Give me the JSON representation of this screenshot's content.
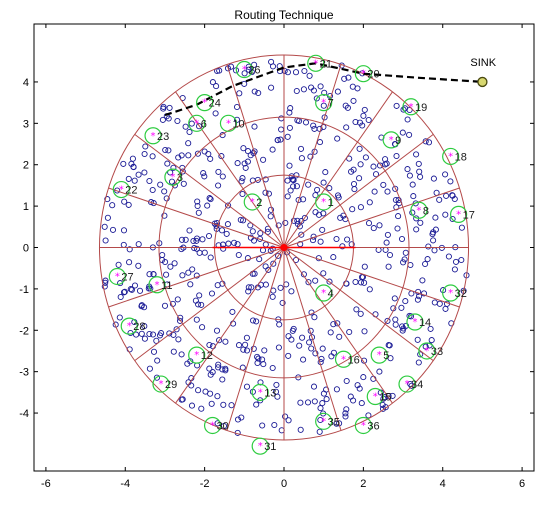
{
  "chart_data": {
    "type": "scatter",
    "title": "Routing Technique",
    "xlabel": "",
    "ylabel": "",
    "xlim": [
      -6.3,
      6.3
    ],
    "ylim": [
      -5.4,
      5.4
    ],
    "xticks": [
      "-6",
      "-4",
      "-2",
      "0",
      "2",
      "4",
      "6"
    ],
    "yticks": [
      "4",
      "3",
      "2",
      "1",
      "0",
      "-1",
      "-2",
      "-3",
      "-4"
    ],
    "grid": false,
    "rings": [
      1.75,
      3.15,
      4.65
    ],
    "sector_angles": [
      0,
      18,
      36,
      54,
      72,
      90,
      108,
      126,
      144,
      162,
      180,
      198,
      216,
      234,
      252,
      270,
      288,
      306,
      324,
      342
    ],
    "sink": {
      "label": "SINK",
      "x": 5.0,
      "y": 4.0
    },
    "route_path": [
      [
        -3.0,
        3.2
      ],
      [
        -2.2,
        3.45
      ],
      [
        -1.3,
        3.9
      ],
      [
        0.0,
        4.35
      ],
      [
        0.8,
        4.45
      ],
      [
        2.0,
        4.2
      ],
      [
        3.4,
        4.1
      ],
      [
        5.0,
        4.0
      ]
    ],
    "cluster_heads": [
      {
        "label": "1",
        "x": 1.0,
        "y": 1.1
      },
      {
        "label": "2",
        "x": -0.8,
        "y": 1.1
      },
      {
        "label": "3",
        "x": -2.8,
        "y": 1.7
      },
      {
        "label": "4",
        "x": 1.0,
        "y": -1.1
      },
      {
        "label": "5",
        "x": 2.4,
        "y": -2.6
      },
      {
        "label": "6",
        "x": -2.2,
        "y": 3.0
      },
      {
        "label": "7",
        "x": 1.0,
        "y": 3.5
      },
      {
        "label": "8",
        "x": 3.4,
        "y": 0.9
      },
      {
        "label": "9",
        "x": 2.7,
        "y": 2.6
      },
      {
        "label": "10",
        "x": -1.4,
        "y": 3.0
      },
      {
        "label": "11",
        "x": -3.2,
        "y": -0.9
      },
      {
        "label": "12",
        "x": -2.2,
        "y": -2.6
      },
      {
        "label": "13",
        "x": -0.6,
        "y": -3.5
      },
      {
        "label": "14",
        "x": 3.3,
        "y": -1.8
      },
      {
        "label": "15",
        "x": 2.3,
        "y": -3.6
      },
      {
        "label": "16",
        "x": 1.5,
        "y": -2.7
      },
      {
        "label": "17",
        "x": 4.4,
        "y": 0.8
      },
      {
        "label": "18",
        "x": 4.2,
        "y": 2.2
      },
      {
        "label": "19",
        "x": 3.2,
        "y": 3.4
      },
      {
        "label": "20",
        "x": 2.0,
        "y": 4.2
      },
      {
        "label": "21",
        "x": 0.8,
        "y": 4.45
      },
      {
        "label": "22",
        "x": -4.1,
        "y": 1.4
      },
      {
        "label": "23",
        "x": -3.3,
        "y": 2.7
      },
      {
        "label": "24",
        "x": -2.0,
        "y": 3.5
      },
      {
        "label": "26",
        "x": -1.0,
        "y": 4.3
      },
      {
        "label": "27",
        "x": -4.2,
        "y": -0.7
      },
      {
        "label": "28",
        "x": -3.9,
        "y": -1.9
      },
      {
        "label": "29",
        "x": -3.1,
        "y": -3.3
      },
      {
        "label": "30",
        "x": -1.8,
        "y": -4.3
      },
      {
        "label": "31",
        "x": -0.6,
        "y": -4.8
      },
      {
        "label": "32",
        "x": 4.2,
        "y": -1.1
      },
      {
        "label": "33",
        "x": 3.6,
        "y": -2.5
      },
      {
        "label": "34",
        "x": 3.1,
        "y": -3.3
      },
      {
        "label": "35",
        "x": 1.0,
        "y": -4.2
      },
      {
        "label": "36",
        "x": 2.0,
        "y": -4.3
      }
    ],
    "node_count": 650,
    "node_field_radius": 4.65,
    "colors": {
      "nodes": "#1c1c96",
      "sectors": "#b44a4a",
      "sector_center": "#ff0000",
      "cluster_ring": "#2ecc40",
      "cluster_head": "#ff00ff",
      "route": "#000000",
      "sink": "#4a4a10"
    }
  }
}
